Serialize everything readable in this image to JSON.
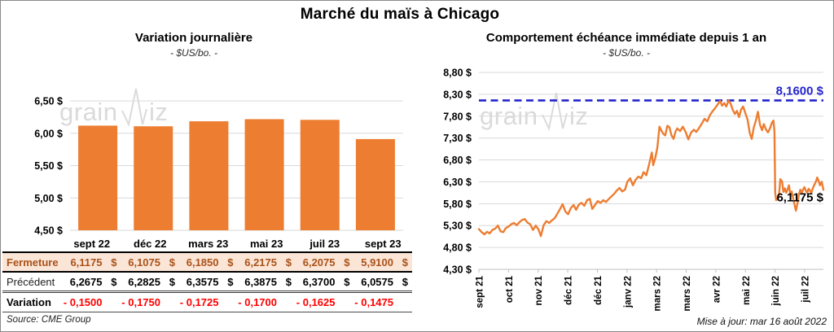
{
  "page": {
    "title": "Marché du maïs à Chicago"
  },
  "left_panel": {
    "title": "Variation journalière",
    "subtitle": "- $US/bo. -",
    "source": "Source: CME Group"
  },
  "right_panel": {
    "title": "Comportement échéance immédiate depuis 1 an",
    "subtitle": "- $US/bo. -",
    "update_note": "Mise à jour: mar 16 août 2022"
  },
  "watermark": {
    "text": "grainwiz"
  },
  "colors": {
    "accent_orange": "#ED7D31",
    "highlight_bg": "#FBE5D6",
    "fermeture_text": "#A9521A",
    "variation_red": "#FF0000",
    "reference_blue": "#2323CC",
    "gridline": "#D9D9D9",
    "axis_line": "#BFBFBF",
    "watermark_gray": "#DADADA"
  },
  "table": {
    "columns": [
      "sept 22",
      "déc 22",
      "mars 23",
      "mai 23",
      "juil 23",
      "sept 23"
    ],
    "rows": [
      {
        "label": "Fermeture",
        "style": "fermeture",
        "currency": "$",
        "values": [
          "6,1175",
          "6,1075",
          "6,1850",
          "6,2175",
          "6,2075",
          "5,9100"
        ]
      },
      {
        "label": "Précédent",
        "style": "precedent",
        "currency": "$",
        "values": [
          "6,2675",
          "6,2825",
          "6,3575",
          "6,3875",
          "6,3700",
          "6,0575"
        ]
      },
      {
        "label": "Variation",
        "style": "variation",
        "currency": "",
        "values": [
          "- 0,1500",
          "- 0,1750",
          "- 0,1725",
          "- 0,1700",
          "- 0,1625",
          "- 0,1475"
        ]
      }
    ]
  },
  "chart_data": [
    {
      "type": "bar",
      "title": "Variation journalière",
      "ylabel": "$US/bo.",
      "categories": [
        "sept 22",
        "déc 22",
        "mars 23",
        "mai 23",
        "juil 23",
        "sept 23"
      ],
      "values": [
        6.1175,
        6.1075,
        6.185,
        6.2175,
        6.2075,
        5.91
      ],
      "ylim": [
        4.5,
        6.5
      ],
      "grid": true,
      "bar_color": "#ED7D31",
      "yticks": [
        {
          "v": 6.5,
          "label": "6,50 $"
        },
        {
          "v": 6.0,
          "label": "6,00 $"
        },
        {
          "v": 5.5,
          "label": "5,50 $"
        },
        {
          "v": 5.0,
          "label": "5,00 $"
        },
        {
          "v": 4.5,
          "label": "4,50 $"
        }
      ]
    },
    {
      "type": "line",
      "title": "Comportement échéance immédiate depuis 1 an",
      "ylabel": "$US/bo.",
      "ylim": [
        4.3,
        8.8
      ],
      "grid": true,
      "line_color": "#ED7D31",
      "legend": "none",
      "yticks": [
        {
          "v": 8.8,
          "label": "8,80 $"
        },
        {
          "v": 8.3,
          "label": "8,30 $"
        },
        {
          "v": 7.8,
          "label": "7,80 $"
        },
        {
          "v": 7.3,
          "label": "7,30 $"
        },
        {
          "v": 6.8,
          "label": "6,80 $"
        },
        {
          "v": 6.3,
          "label": "6,30 $"
        },
        {
          "v": 5.8,
          "label": "5,80 $"
        },
        {
          "v": 5.3,
          "label": "5,30 $"
        },
        {
          "v": 4.8,
          "label": "4,80 $"
        },
        {
          "v": 4.3,
          "label": "4,30 $"
        }
      ],
      "x_tick_labels": [
        "sept 21",
        "oct 21",
        "nov 21",
        "déc 21",
        "déc 21",
        "janv 22",
        "mars 22",
        "mars 22",
        "avr 22",
        "mai 22",
        "juin 22",
        "juil 22"
      ],
      "reference_line": {
        "value": 8.16,
        "label": "8,1600 $",
        "style": "dashed",
        "color": "#2323CC"
      },
      "last_point": {
        "value": 6.1175,
        "label": "6,1175 $"
      },
      "points": [
        [
          0.0,
          5.22
        ],
        [
          0.008,
          5.15
        ],
        [
          0.016,
          5.1
        ],
        [
          0.024,
          5.16
        ],
        [
          0.031,
          5.12
        ],
        [
          0.039,
          5.2
        ],
        [
          0.047,
          5.23
        ],
        [
          0.055,
          5.3
        ],
        [
          0.063,
          5.17
        ],
        [
          0.071,
          5.15
        ],
        [
          0.078,
          5.24
        ],
        [
          0.086,
          5.28
        ],
        [
          0.094,
          5.33
        ],
        [
          0.102,
          5.36
        ],
        [
          0.11,
          5.31
        ],
        [
          0.118,
          5.38
        ],
        [
          0.126,
          5.43
        ],
        [
          0.133,
          5.45
        ],
        [
          0.141,
          5.37
        ],
        [
          0.149,
          5.33
        ],
        [
          0.157,
          5.2
        ],
        [
          0.165,
          5.3
        ],
        [
          0.173,
          5.21
        ],
        [
          0.18,
          5.06
        ],
        [
          0.188,
          5.31
        ],
        [
          0.196,
          5.4
        ],
        [
          0.204,
          5.36
        ],
        [
          0.212,
          5.42
        ],
        [
          0.22,
          5.47
        ],
        [
          0.227,
          5.56
        ],
        [
          0.235,
          5.67
        ],
        [
          0.243,
          5.79
        ],
        [
          0.251,
          5.62
        ],
        [
          0.259,
          5.56
        ],
        [
          0.267,
          5.7
        ],
        [
          0.275,
          5.77
        ],
        [
          0.282,
          5.66
        ],
        [
          0.29,
          5.78
        ],
        [
          0.298,
          5.82
        ],
        [
          0.306,
          5.75
        ],
        [
          0.314,
          5.88
        ],
        [
          0.322,
          5.91
        ],
        [
          0.329,
          5.68
        ],
        [
          0.337,
          5.77
        ],
        [
          0.345,
          5.86
        ],
        [
          0.353,
          5.82
        ],
        [
          0.361,
          5.88
        ],
        [
          0.369,
          5.84
        ],
        [
          0.376,
          5.9
        ],
        [
          0.384,
          5.96
        ],
        [
          0.392,
          6.02
        ],
        [
          0.4,
          6.1
        ],
        [
          0.408,
          6.16
        ],
        [
          0.416,
          6.08
        ],
        [
          0.424,
          6.12
        ],
        [
          0.431,
          6.3
        ],
        [
          0.439,
          6.38
        ],
        [
          0.447,
          6.22
        ],
        [
          0.455,
          6.35
        ],
        [
          0.463,
          6.42
        ],
        [
          0.471,
          6.38
        ],
        [
          0.478,
          6.52
        ],
        [
          0.486,
          6.45
        ],
        [
          0.494,
          6.7
        ],
        [
          0.502,
          6.97
        ],
        [
          0.506,
          6.68
        ],
        [
          0.512,
          6.85
        ],
        [
          0.518,
          7.08
        ],
        [
          0.524,
          7.56
        ],
        [
          0.529,
          7.48
        ],
        [
          0.535,
          7.4
        ],
        [
          0.541,
          7.36
        ],
        [
          0.547,
          7.58
        ],
        [
          0.553,
          7.55
        ],
        [
          0.559,
          7.36
        ],
        [
          0.565,
          7.28
        ],
        [
          0.571,
          7.45
        ],
        [
          0.576,
          7.52
        ],
        [
          0.584,
          7.46
        ],
        [
          0.592,
          7.56
        ],
        [
          0.6,
          7.44
        ],
        [
          0.608,
          7.27
        ],
        [
          0.616,
          7.43
        ],
        [
          0.624,
          7.49
        ],
        [
          0.631,
          7.44
        ],
        [
          0.639,
          7.53
        ],
        [
          0.647,
          7.63
        ],
        [
          0.655,
          7.74
        ],
        [
          0.663,
          7.68
        ],
        [
          0.671,
          7.83
        ],
        [
          0.678,
          7.91
        ],
        [
          0.686,
          7.99
        ],
        [
          0.694,
          8.08
        ],
        [
          0.7,
          8.15
        ],
        [
          0.706,
          8.04
        ],
        [
          0.712,
          8.1
        ],
        [
          0.718,
          8.02
        ],
        [
          0.725,
          8.16
        ],
        [
          0.731,
          8.08
        ],
        [
          0.737,
          7.94
        ],
        [
          0.743,
          7.85
        ],
        [
          0.749,
          7.92
        ],
        [
          0.755,
          7.78
        ],
        [
          0.761,
          7.95
        ],
        [
          0.767,
          8.02
        ],
        [
          0.773,
          7.88
        ],
        [
          0.78,
          7.72
        ],
        [
          0.786,
          7.42
        ],
        [
          0.792,
          7.28
        ],
        [
          0.798,
          7.55
        ],
        [
          0.804,
          7.7
        ],
        [
          0.81,
          7.9
        ],
        [
          0.816,
          7.6
        ],
        [
          0.822,
          7.48
        ],
        [
          0.827,
          7.62
        ],
        [
          0.833,
          7.5
        ],
        [
          0.839,
          7.43
        ],
        [
          0.845,
          7.52
        ],
        [
          0.851,
          7.66
        ],
        [
          0.855,
          7.7
        ],
        [
          0.858,
          7.45
        ],
        [
          0.86,
          6.05
        ],
        [
          0.863,
          5.88
        ],
        [
          0.867,
          5.92
        ],
        [
          0.871,
          5.98
        ],
        [
          0.875,
          6.36
        ],
        [
          0.88,
          6.31
        ],
        [
          0.884,
          6.07
        ],
        [
          0.888,
          6.15
        ],
        [
          0.892,
          6.05
        ],
        [
          0.896,
          6.13
        ],
        [
          0.9,
          6.22
        ],
        [
          0.904,
          6.0
        ],
        [
          0.908,
          6.08
        ],
        [
          0.912,
          5.92
        ],
        [
          0.916,
          5.78
        ],
        [
          0.92,
          5.64
        ],
        [
          0.925,
          5.82
        ],
        [
          0.929,
          6.02
        ],
        [
          0.933,
          6.12
        ],
        [
          0.937,
          6.05
        ],
        [
          0.941,
          6.12
        ],
        [
          0.945,
          6.18
        ],
        [
          0.949,
          6.1
        ],
        [
          0.953,
          6.05
        ],
        [
          0.957,
          6.14
        ],
        [
          0.961,
          6.1
        ],
        [
          0.965,
          6.05
        ],
        [
          0.969,
          6.15
        ],
        [
          0.973,
          6.22
        ],
        [
          0.978,
          6.3
        ],
        [
          0.982,
          6.4
        ],
        [
          0.986,
          6.32
        ],
        [
          0.99,
          6.22
        ],
        [
          0.995,
          6.3
        ],
        [
          1.0,
          6.1175
        ]
      ]
    }
  ]
}
